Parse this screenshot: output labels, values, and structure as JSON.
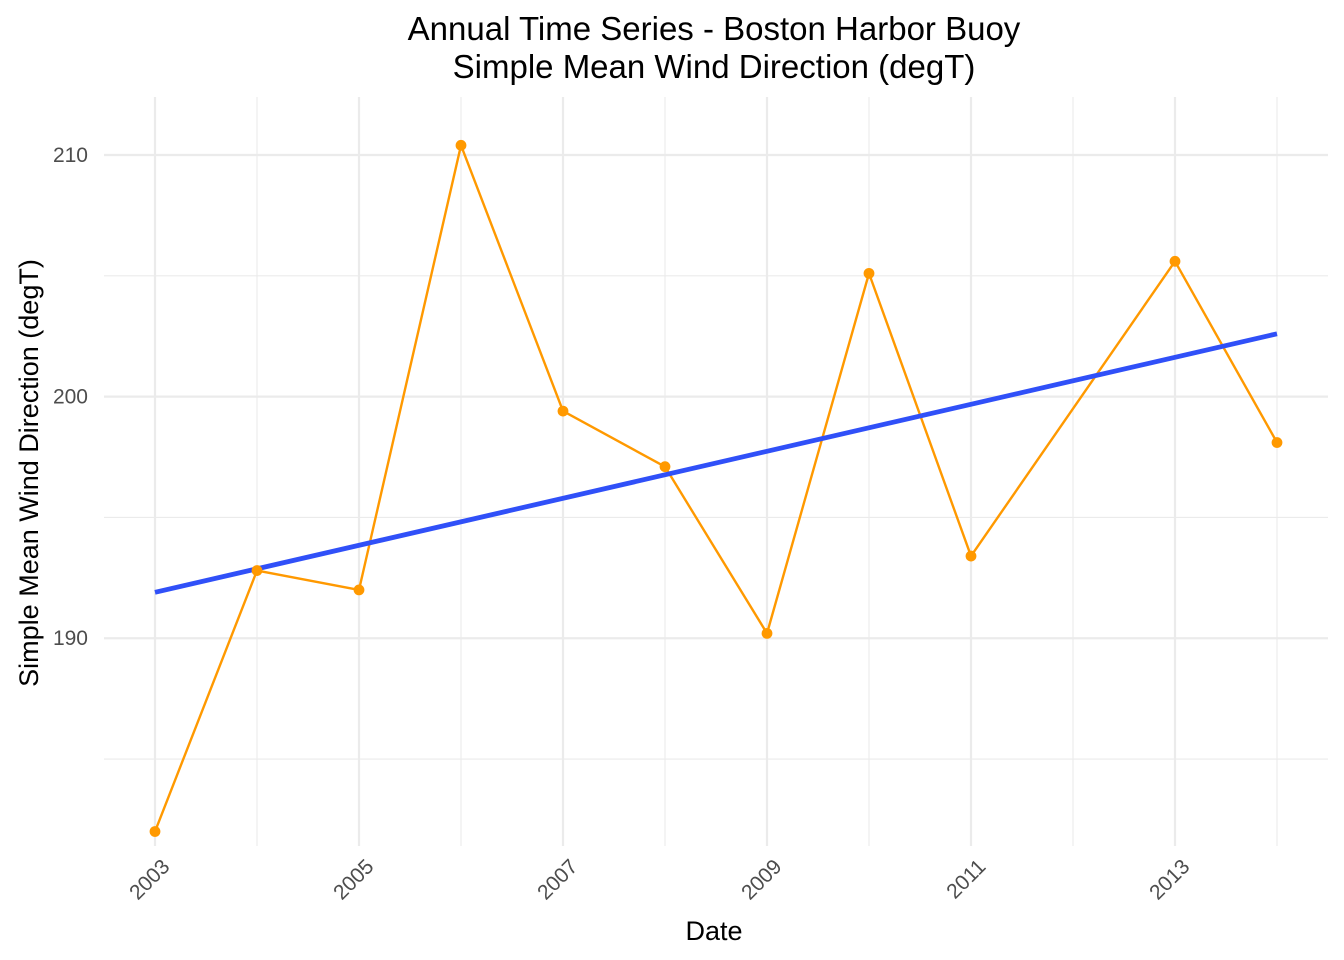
{
  "chart_data": {
    "type": "line",
    "title": "Annual Time Series - Boston Harbor Buoy",
    "subtitle": "Simple Mean Wind Direction (degT)",
    "xlabel": "Date",
    "ylabel": "Simple Mean Wind Direction (degT)",
    "x_ticks": [
      "2003",
      "2005",
      "2007",
      "2009",
      "2011",
      "2013"
    ],
    "y_ticks": [
      190,
      200,
      210
    ],
    "xlim": [
      2002.5,
      2014.5
    ],
    "ylim": [
      181.4,
      212.4
    ],
    "grid": true,
    "legend": "none",
    "series": [
      {
        "x": [
          2003,
          2004,
          2005,
          2006,
          2007,
          2008,
          2009,
          2010,
          2011,
          2012,
          2013,
          2014
        ],
        "values": [
          182.0,
          192.8,
          192.0,
          210.4,
          199.4,
          197.1,
          190.2,
          205.1,
          193.4,
          null,
          205.6,
          198.1
        ],
        "color": "#ff9900"
      },
      {
        "kind": "linear-trend",
        "x": [
          2003,
          2014
        ],
        "values": [
          191.9,
          202.6
        ],
        "color": "#3050f8"
      }
    ]
  }
}
